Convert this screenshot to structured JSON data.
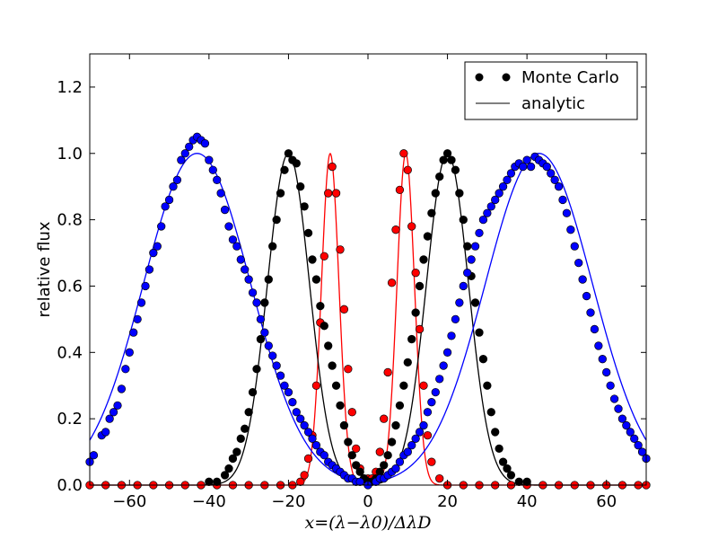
{
  "chart_data": {
    "type": "scatter",
    "title": "",
    "xlabel": "x=(λ−λ0)/ΔλD",
    "ylabel": "relative flux",
    "xlim": [
      -70,
      70
    ],
    "ylim": [
      0,
      1.3
    ],
    "xticks": [
      -60,
      -40,
      -20,
      0,
      20,
      40,
      60
    ],
    "yticks": [
      0.0,
      0.2,
      0.4,
      0.6,
      0.8,
      1.0,
      1.2
    ],
    "xtick_labels": [
      "−60",
      "−40",
      "−20",
      "0",
      "20",
      "40",
      "60"
    ],
    "ytick_labels": [
      "0.0",
      "0.2",
      "0.4",
      "0.6",
      "0.8",
      "1.0",
      "1.2"
    ],
    "grid": false,
    "legend": {
      "placement": "top-right",
      "entries": [
        {
          "label": "Monte Carlo",
          "style": "markers"
        },
        {
          "label": "analytic",
          "style": "line"
        }
      ]
    },
    "series": [
      {
        "name": "red",
        "color": "#ff0000",
        "analytic": {
          "center": 9.5,
          "sigma": 2.2,
          "peak": 1.0
        },
        "monte_carlo": [
          [
            -70,
            0.0
          ],
          [
            -66,
            0.0
          ],
          [
            -62,
            0.0
          ],
          [
            -58,
            0.0
          ],
          [
            -54,
            0.0
          ],
          [
            -50,
            0.0
          ],
          [
            -46,
            0.0
          ],
          [
            -42,
            0.0
          ],
          [
            -38,
            0.0
          ],
          [
            -34,
            0.0
          ],
          [
            -30,
            0.0
          ],
          [
            -26,
            0.0
          ],
          [
            -22,
            0.0
          ],
          [
            -19,
            0.0
          ],
          [
            -17,
            0.01
          ],
          [
            -16,
            0.03
          ],
          [
            -15,
            0.08
          ],
          [
            -14,
            0.15
          ],
          [
            -13,
            0.3
          ],
          [
            -12,
            0.49
          ],
          [
            -11,
            0.69
          ],
          [
            -10,
            0.88
          ],
          [
            -9,
            0.96
          ],
          [
            -8,
            0.88
          ],
          [
            -7,
            0.71
          ],
          [
            -6,
            0.53
          ],
          [
            -5,
            0.35
          ],
          [
            -4,
            0.22
          ],
          [
            -3,
            0.11
          ],
          [
            -2,
            0.05
          ],
          [
            -1,
            0.02
          ],
          [
            0,
            0.02
          ],
          [
            1,
            0.02
          ],
          [
            2,
            0.04
          ],
          [
            3,
            0.1
          ],
          [
            4,
            0.2
          ],
          [
            5,
            0.34
          ],
          [
            6,
            0.61
          ],
          [
            7,
            0.77
          ],
          [
            8,
            0.89
          ],
          [
            9,
            1.0
          ],
          [
            10,
            0.95
          ],
          [
            11,
            0.78
          ],
          [
            12,
            0.64
          ],
          [
            13,
            0.47
          ],
          [
            14,
            0.3
          ],
          [
            15,
            0.15
          ],
          [
            16,
            0.07
          ],
          [
            18,
            0.02
          ],
          [
            20,
            0.0
          ],
          [
            24,
            0.0
          ],
          [
            28,
            0.0
          ],
          [
            32,
            0.0
          ],
          [
            36,
            0.0
          ],
          [
            40,
            0.0
          ],
          [
            44,
            0.0
          ],
          [
            48,
            0.0
          ],
          [
            52,
            0.0
          ],
          [
            56,
            0.0
          ],
          [
            60,
            0.0
          ],
          [
            64,
            0.0
          ],
          [
            68,
            0.0
          ],
          [
            70,
            0.0
          ]
        ]
      },
      {
        "name": "black",
        "color": "#000000",
        "analytic": {
          "center": 20,
          "sigma": 5.3,
          "peak": 1.0
        },
        "monte_carlo": [
          [
            -40,
            0.01
          ],
          [
            -38,
            0.01
          ],
          [
            -36,
            0.03
          ],
          [
            -35,
            0.05
          ],
          [
            -34,
            0.08
          ],
          [
            -33,
            0.1
          ],
          [
            -32,
            0.14
          ],
          [
            -31,
            0.17
          ],
          [
            -30,
            0.22
          ],
          [
            -29,
            0.28
          ],
          [
            -28,
            0.35
          ],
          [
            -27,
            0.44
          ],
          [
            -26,
            0.55
          ],
          [
            -25,
            0.62
          ],
          [
            -24,
            0.72
          ],
          [
            -23,
            0.8
          ],
          [
            -22,
            0.88
          ],
          [
            -21,
            0.95
          ],
          [
            -20,
            1.0
          ],
          [
            -19,
            0.98
          ],
          [
            -18,
            0.97
          ],
          [
            -17,
            0.9
          ],
          [
            -16,
            0.84
          ],
          [
            -15,
            0.76
          ],
          [
            -14,
            0.68
          ],
          [
            -13,
            0.62
          ],
          [
            -12,
            0.54
          ],
          [
            -11,
            0.48
          ],
          [
            -10,
            0.42
          ],
          [
            -9,
            0.36
          ],
          [
            -8,
            0.3
          ],
          [
            -7,
            0.24
          ],
          [
            -6,
            0.18
          ],
          [
            -5,
            0.13
          ],
          [
            -4,
            0.09
          ],
          [
            -3,
            0.06
          ],
          [
            -2,
            0.04
          ],
          [
            -1,
            0.02
          ],
          [
            0,
            0.01
          ],
          [
            1,
            0.01
          ],
          [
            2,
            0.02
          ],
          [
            3,
            0.04
          ],
          [
            4,
            0.06
          ],
          [
            5,
            0.09
          ],
          [
            6,
            0.13
          ],
          [
            7,
            0.18
          ],
          [
            8,
            0.24
          ],
          [
            9,
            0.3
          ],
          [
            10,
            0.37
          ],
          [
            11,
            0.44
          ],
          [
            12,
            0.52
          ],
          [
            13,
            0.6
          ],
          [
            14,
            0.68
          ],
          [
            15,
            0.75
          ],
          [
            16,
            0.82
          ],
          [
            17,
            0.88
          ],
          [
            18,
            0.93
          ],
          [
            19,
            0.98
          ],
          [
            20,
            1.0
          ],
          [
            21,
            0.98
          ],
          [
            22,
            0.95
          ],
          [
            23,
            0.88
          ],
          [
            24,
            0.8
          ],
          [
            25,
            0.72
          ],
          [
            26,
            0.63
          ],
          [
            27,
            0.55
          ],
          [
            28,
            0.46
          ],
          [
            29,
            0.38
          ],
          [
            30,
            0.3
          ],
          [
            31,
            0.22
          ],
          [
            32,
            0.16
          ],
          [
            33,
            0.11
          ],
          [
            34,
            0.07
          ],
          [
            35,
            0.05
          ],
          [
            36,
            0.03
          ],
          [
            38,
            0.01
          ],
          [
            40,
            0.01
          ]
        ]
      },
      {
        "name": "blue",
        "color": "#0000ff",
        "analytic": {
          "center": 43,
          "sigma": 13.5,
          "peak": 1.0
        },
        "monte_carlo": [
          [
            -70,
            0.07
          ],
          [
            -69,
            0.09
          ],
          [
            -67,
            0.15
          ],
          [
            -66,
            0.16
          ],
          [
            -65,
            0.2
          ],
          [
            -64,
            0.22
          ],
          [
            -63,
            0.24
          ],
          [
            -62,
            0.29
          ],
          [
            -61,
            0.35
          ],
          [
            -60,
            0.4
          ],
          [
            -59,
            0.46
          ],
          [
            -58,
            0.5
          ],
          [
            -57,
            0.55
          ],
          [
            -56,
            0.6
          ],
          [
            -55,
            0.65
          ],
          [
            -54,
            0.7
          ],
          [
            -53,
            0.72
          ],
          [
            -52,
            0.78
          ],
          [
            -51,
            0.84
          ],
          [
            -50,
            0.86
          ],
          [
            -49,
            0.9
          ],
          [
            -48,
            0.92
          ],
          [
            -47,
            0.98
          ],
          [
            -46,
            1.0
          ],
          [
            -45,
            1.02
          ],
          [
            -44,
            1.04
          ],
          [
            -43,
            1.05
          ],
          [
            -42,
            1.04
          ],
          [
            -41,
            1.03
          ],
          [
            -40,
            0.98
          ],
          [
            -39,
            0.95
          ],
          [
            -38,
            0.92
          ],
          [
            -37,
            0.88
          ],
          [
            -36,
            0.83
          ],
          [
            -35,
            0.78
          ],
          [
            -34,
            0.74
          ],
          [
            -33,
            0.72
          ],
          [
            -32,
            0.68
          ],
          [
            -31,
            0.65
          ],
          [
            -30,
            0.62
          ],
          [
            -29,
            0.58
          ],
          [
            -28,
            0.55
          ],
          [
            -27,
            0.5
          ],
          [
            -26,
            0.46
          ],
          [
            -25,
            0.42
          ],
          [
            -24,
            0.39
          ],
          [
            -23,
            0.36
          ],
          [
            -22,
            0.33
          ],
          [
            -21,
            0.3
          ],
          [
            -20,
            0.28
          ],
          [
            -19,
            0.25
          ],
          [
            -18,
            0.22
          ],
          [
            -17,
            0.2
          ],
          [
            -16,
            0.18
          ],
          [
            -15,
            0.16
          ],
          [
            -14,
            0.14
          ],
          [
            -13,
            0.12
          ],
          [
            -12,
            0.1
          ],
          [
            -11,
            0.09
          ],
          [
            -10,
            0.07
          ],
          [
            -9,
            0.06
          ],
          [
            -8,
            0.05
          ],
          [
            -7,
            0.04
          ],
          [
            -6,
            0.03
          ],
          [
            -5,
            0.02
          ],
          [
            -4,
            0.02
          ],
          [
            -3,
            0.01
          ],
          [
            -2,
            0.01
          ],
          [
            0,
            0.0
          ],
          [
            2,
            0.01
          ],
          [
            3,
            0.02
          ],
          [
            4,
            0.02
          ],
          [
            5,
            0.03
          ],
          [
            6,
            0.04
          ],
          [
            7,
            0.05
          ],
          [
            8,
            0.07
          ],
          [
            9,
            0.09
          ],
          [
            10,
            0.1
          ],
          [
            11,
            0.12
          ],
          [
            12,
            0.14
          ],
          [
            13,
            0.16
          ],
          [
            14,
            0.18
          ],
          [
            15,
            0.22
          ],
          [
            16,
            0.25
          ],
          [
            17,
            0.28
          ],
          [
            18,
            0.32
          ],
          [
            19,
            0.36
          ],
          [
            20,
            0.4
          ],
          [
            21,
            0.45
          ],
          [
            22,
            0.5
          ],
          [
            23,
            0.55
          ],
          [
            24,
            0.6
          ],
          [
            25,
            0.64
          ],
          [
            26,
            0.68
          ],
          [
            27,
            0.72
          ],
          [
            28,
            0.76
          ],
          [
            29,
            0.8
          ],
          [
            30,
            0.82
          ],
          [
            31,
            0.84
          ],
          [
            32,
            0.86
          ],
          [
            33,
            0.88
          ],
          [
            34,
            0.9
          ],
          [
            35,
            0.92
          ],
          [
            36,
            0.94
          ],
          [
            37,
            0.96
          ],
          [
            38,
            0.97
          ],
          [
            39,
            0.96
          ],
          [
            40,
            0.98
          ],
          [
            41,
            0.96
          ],
          [
            42,
            0.99
          ],
          [
            43,
            0.98
          ],
          [
            44,
            0.97
          ],
          [
            45,
            0.96
          ],
          [
            46,
            0.94
          ],
          [
            47,
            0.92
          ],
          [
            48,
            0.9
          ],
          [
            49,
            0.86
          ],
          [
            50,
            0.82
          ],
          [
            51,
            0.77
          ],
          [
            52,
            0.72
          ],
          [
            53,
            0.67
          ],
          [
            54,
            0.62
          ],
          [
            55,
            0.57
          ],
          [
            56,
            0.52
          ],
          [
            57,
            0.47
          ],
          [
            58,
            0.42
          ],
          [
            59,
            0.38
          ],
          [
            60,
            0.34
          ],
          [
            61,
            0.3
          ],
          [
            62,
            0.26
          ],
          [
            63,
            0.23
          ],
          [
            64,
            0.2
          ],
          [
            65,
            0.18
          ],
          [
            66,
            0.16
          ],
          [
            67,
            0.14
          ],
          [
            68,
            0.12
          ],
          [
            69,
            0.1
          ],
          [
            70,
            0.08
          ]
        ]
      }
    ]
  }
}
